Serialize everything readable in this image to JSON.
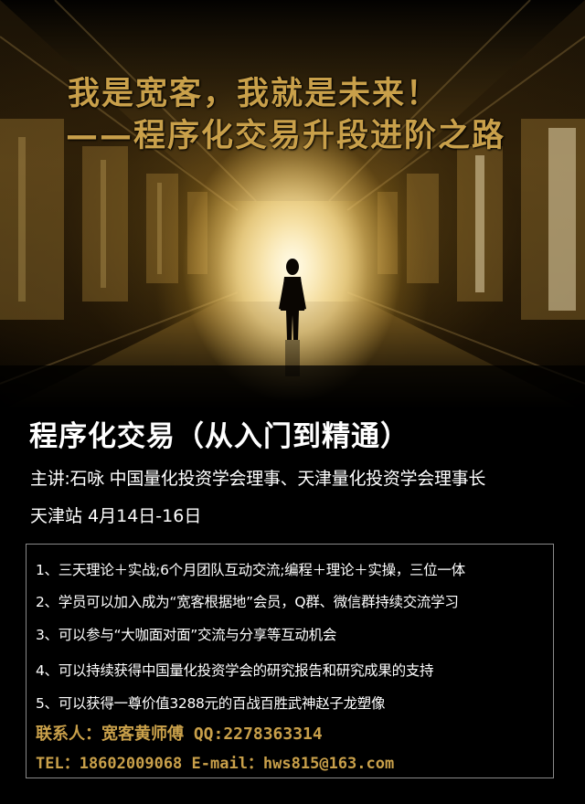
{
  "hero": {
    "title_line1": "我是宽客，我就是未来！",
    "title_line2": "——程序化交易升段进阶之路"
  },
  "course": {
    "title": "程序化交易（从入门到精通）",
    "lecturer": "主讲:石咏  中国量化投资学会理事、天津量化投资学会理事长",
    "venue": "天津站  4月14日-16日"
  },
  "highlights": [
    "1、三天理论＋实战;6个月团队互动交流;编程＋理论＋实操，三位一体",
    "2、学员可以加入成为“宽客根据地”会员，Q群、微信群持续交流学习",
    "3、可以参与“大咖面对面”交流与分享等互动机会",
    "4、可以持续获得中国量化投资学会的研究报告和研究成果的支持",
    "5、可以获得一尊价值3288元的百战百胜武神赵子龙塑像"
  ],
  "contact": {
    "line1": "联系人：宽客黄师傅 QQ:2278363314",
    "line2": "TEL：18602009068    E-mail：hws815@163.com"
  },
  "colors": {
    "gold": "#c9a04a",
    "text": "#ffffff",
    "background": "#000000"
  }
}
